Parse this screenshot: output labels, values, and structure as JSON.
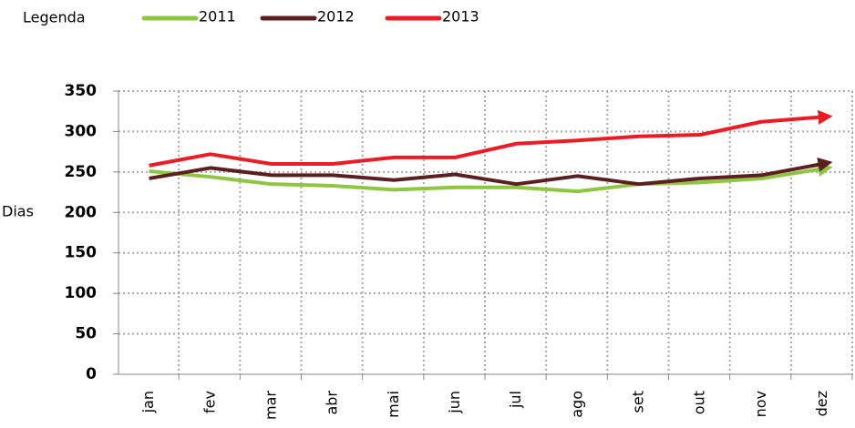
{
  "chart_data": {
    "type": "line",
    "legend_title": "Legenda",
    "ylabel": "Dias",
    "categories": [
      "jan",
      "fev",
      "mar",
      "abr",
      "mai",
      "jun",
      "jul",
      "ago",
      "set",
      "out",
      "nov",
      "dez"
    ],
    "series": [
      {
        "name": "2011",
        "color": "#8dc63f",
        "values": [
          251,
          244,
          235,
          233,
          228,
          231,
          231,
          226,
          235,
          237,
          242,
          254
        ]
      },
      {
        "name": "2012",
        "color": "#5c1f1f",
        "values": [
          242,
          255,
          246,
          246,
          240,
          247,
          235,
          245,
          235,
          242,
          246,
          260
        ]
      },
      {
        "name": "2013",
        "color": "#ed1c24",
        "values": [
          258,
          272,
          260,
          260,
          268,
          268,
          285,
          289,
          294,
          296,
          312,
          318
        ]
      }
    ],
    "ylim": [
      0,
      350
    ],
    "yticks": [
      0,
      50,
      100,
      150,
      200,
      250,
      300,
      350
    ],
    "grid": true,
    "legend": "top"
  }
}
